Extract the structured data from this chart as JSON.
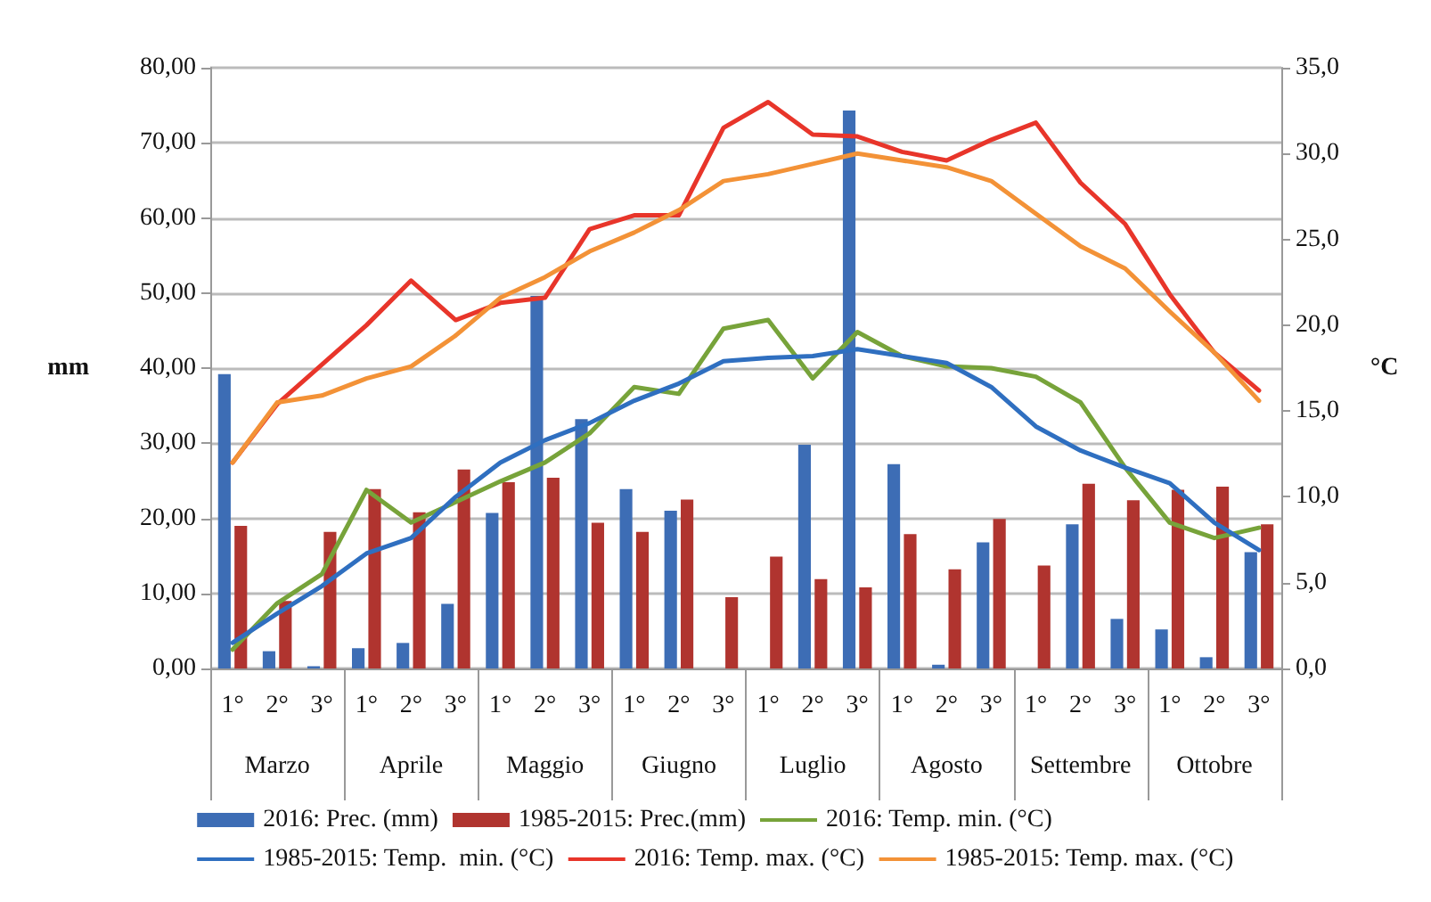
{
  "chart_data": {
    "type": "bar",
    "ylabel": "mm",
    "y2label": "°C",
    "categories": [
      "1°",
      "2°",
      "3°",
      "1°",
      "2°",
      "3°",
      "1°",
      "2°",
      "3°",
      "1°",
      "2°",
      "3°",
      "1°",
      "2°",
      "3°",
      "1°",
      "2°",
      "3°",
      "1°",
      "2°",
      "3°",
      "1°",
      "2°",
      "3°"
    ],
    "annotations": [
      "Marzo",
      "Aprile",
      "Maggio",
      "Giugno",
      "Luglio",
      "Agosto",
      "Settembre",
      "Ottobre"
    ],
    "series": [
      {
        "name": "2016: Prec. (mm)",
        "color": "#3d6db5",
        "values": [
          39.2,
          2.3,
          0.3,
          2.7,
          3.4,
          8.6,
          20.7,
          49.6,
          33.2,
          23.9,
          21.0,
          0,
          0,
          29.8,
          74.3,
          27.2,
          0.5,
          16.8,
          0,
          19.2,
          6.6,
          5.2,
          1.5,
          15.5
        ]
      },
      {
        "name": "1985-2015: Prec.(mm)",
        "color": "#b0342f",
        "values": [
          19.0,
          9.0,
          18.2,
          23.9,
          20.8,
          26.5,
          24.8,
          25.4,
          19.4,
          18.2,
          22.5,
          9.5,
          14.9,
          11.9,
          10.8,
          17.9,
          13.2,
          19.9,
          13.7,
          24.6,
          22.4,
          23.8,
          24.2,
          19.2
        ]
      },
      {
        "name": "2016: Temp. min. (°C)",
        "type": "line",
        "axis": "y2",
        "color": "#77a33a",
        "values": [
          1.1,
          3.8,
          5.5,
          10.4,
          8.5,
          9.7,
          10.9,
          12.0,
          13.7,
          16.4,
          16.0,
          19.8,
          20.3,
          16.9,
          19.6,
          18.2,
          17.6,
          17.5,
          17.0,
          15.5,
          11.7,
          8.5,
          7.6,
          8.2
        ]
      },
      {
        "name": "1985-2015: Temp.  min. (°C)",
        "type": "line",
        "axis": "y2",
        "color": "#2f6fc0",
        "values": [
          1.5,
          3.2,
          4.8,
          6.7,
          7.6,
          10.0,
          12.0,
          13.3,
          14.3,
          15.6,
          16.6,
          17.9,
          18.1,
          18.2,
          18.6,
          18.2,
          17.8,
          16.4,
          14.1,
          12.7,
          11.7,
          10.8,
          8.5,
          6.9
        ]
      },
      {
        "name": "2016: Temp. max. (°C)",
        "type": "line",
        "axis": "y2",
        "color": "#e8352a",
        "values": [
          12.0,
          15.4,
          17.7,
          20.0,
          22.6,
          20.3,
          21.3,
          21.6,
          25.6,
          26.4,
          26.4,
          31.5,
          33.0,
          31.1,
          31.0,
          30.1,
          29.6,
          30.8,
          31.8,
          28.3,
          25.9,
          21.8,
          18.4,
          16.2
        ]
      },
      {
        "name": "1985-2015: Temp. max. (°C)",
        "type": "line",
        "axis": "y2",
        "color": "#f39237",
        "values": [
          12.0,
          15.5,
          15.9,
          16.9,
          17.6,
          19.4,
          21.6,
          22.8,
          24.3,
          25.4,
          26.7,
          28.4,
          28.8,
          29.4,
          30.0,
          29.6,
          29.2,
          28.4,
          26.5,
          24.6,
          23.3,
          20.8,
          18.4,
          15.6
        ]
      }
    ],
    "ylim": [
      0,
      80
    ],
    "yticks": [
      {
        "value": 0,
        "label": "0,00"
      },
      {
        "value": 10,
        "label": "10,00"
      },
      {
        "value": 20,
        "label": "20,00"
      },
      {
        "value": 30,
        "label": "30,00"
      },
      {
        "value": 40,
        "label": "40,00"
      },
      {
        "value": 50,
        "label": "50,00"
      },
      {
        "value": 60,
        "label": "60,00"
      },
      {
        "value": 70,
        "label": "70,00"
      },
      {
        "value": 80,
        "label": "80,00"
      }
    ],
    "y2lim": [
      0,
      35
    ],
    "y2ticks": [
      {
        "value": 0,
        "label": "0,0"
      },
      {
        "value": 5,
        "label": "5,0"
      },
      {
        "value": 10,
        "label": "10,0"
      },
      {
        "value": 15,
        "label": "15,0"
      },
      {
        "value": 20,
        "label": "20,0"
      },
      {
        "value": 25,
        "label": "25,0"
      },
      {
        "value": 30,
        "label": "30,0"
      },
      {
        "value": 35,
        "label": "35,0"
      }
    ],
    "grid": "y",
    "legend": "bottom",
    "marker": "none",
    "line_style": "solid"
  }
}
